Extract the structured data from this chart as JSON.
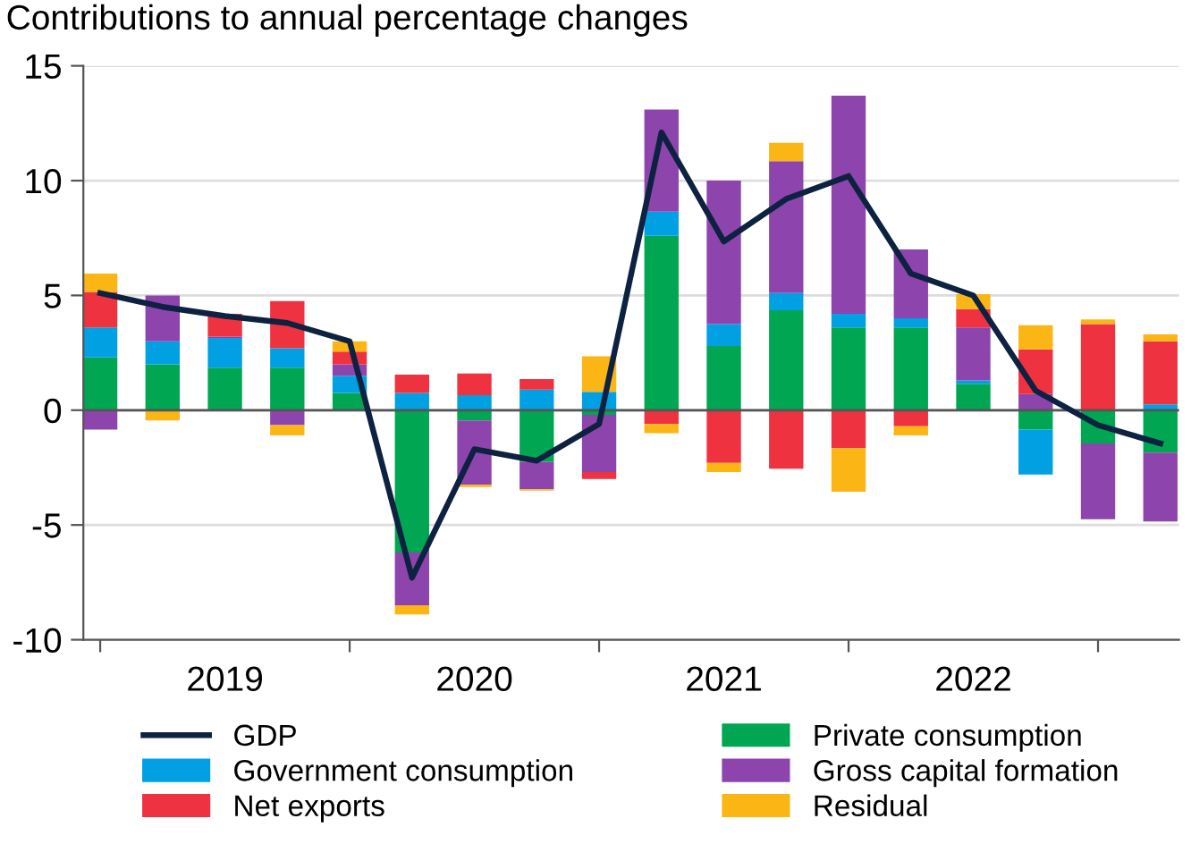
{
  "chart_data": {
    "type": "bar",
    "stacked": true,
    "title": "Contributions to annual percentage changes",
    "categories": [
      null,
      null,
      "2019",
      null,
      null,
      null,
      "2020",
      null,
      null,
      null,
      "2021",
      null,
      null,
      null,
      "2022",
      null,
      null,
      null
    ],
    "series": [
      {
        "name": "GDP",
        "type": "line",
        "color": "#0d2240",
        "values": [
          5.1,
          4.5,
          4.1,
          3.8,
          3.0,
          -7.3,
          -1.7,
          -2.2,
          -0.6,
          12.1,
          7.35,
          9.2,
          10.2,
          5.95,
          5.0,
          0.85,
          -0.65,
          -1.45
        ]
      },
      {
        "name": "Private consumption",
        "color": "#00a651",
        "values": [
          2.3,
          2.0,
          1.85,
          1.85,
          0.75,
          -6.2,
          -0.45,
          -2.25,
          -0.2,
          7.6,
          2.8,
          4.35,
          3.6,
          3.6,
          1.15,
          -0.85,
          -1.45,
          -1.85
        ]
      },
      {
        "name": "Government consumption",
        "color": "#00a0e3",
        "values": [
          1.3,
          1.0,
          1.3,
          0.85,
          0.75,
          0.75,
          0.65,
          0.9,
          0.8,
          1.05,
          0.95,
          0.75,
          0.6,
          0.4,
          0.15,
          -1.95,
          null,
          0.25
        ]
      },
      {
        "name": "Gross capital formation",
        "color": "#8e44ad",
        "values": [
          -0.85,
          2.0,
          0.05,
          -0.65,
          0.5,
          -2.3,
          -2.8,
          -1.2,
          -2.5,
          4.45,
          6.25,
          5.75,
          9.5,
          3.0,
          2.3,
          0.7,
          -3.3,
          -3.0
        ]
      },
      {
        "name": "Net exports",
        "color": "#ee3240",
        "values": [
          1.55,
          0.0,
          1.0,
          2.05,
          0.55,
          0.8,
          0.95,
          0.45,
          -0.3,
          -0.6,
          -2.3,
          -2.55,
          -1.65,
          -0.7,
          0.8,
          1.95,
          3.75,
          2.75
        ]
      },
      {
        "name": "Residual",
        "color": "#fbb616",
        "values": [
          0.8,
          -0.45,
          0.0,
          -0.45,
          0.45,
          -0.4,
          -0.1,
          -0.05,
          1.55,
          -0.4,
          -0.4,
          0.8,
          -1.9,
          -0.4,
          0.65,
          1.05,
          0.2,
          0.3
        ]
      }
    ],
    "ylim": [
      -10,
      15
    ],
    "yticks": [
      -10,
      -5,
      0,
      5,
      10,
      15
    ],
    "grid": "y",
    "legend": "bottom",
    "ref_lines": [
      {
        "axis": "y",
        "value": 0,
        "color": "#555555"
      }
    ]
  }
}
